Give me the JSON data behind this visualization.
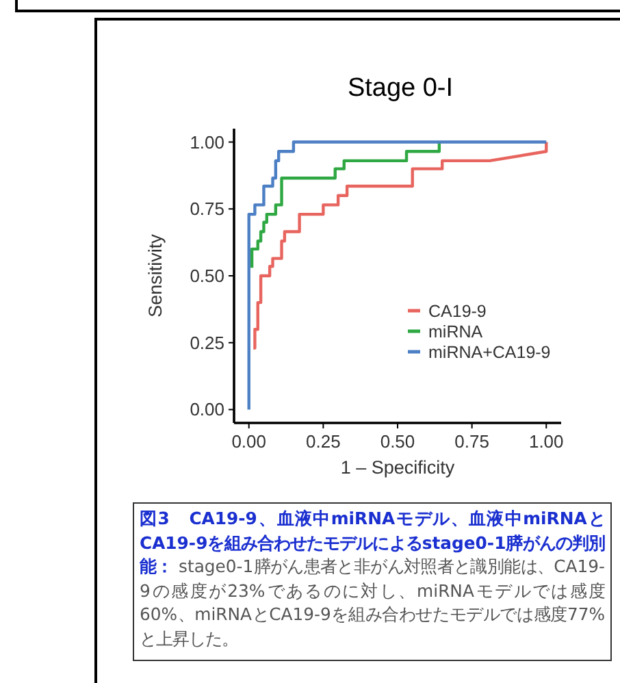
{
  "chart_data": {
    "type": "line",
    "title": "Stage 0-I",
    "xlabel": "1 – Specificity",
    "ylabel": "Sensitivity",
    "xlim": [
      -0.05,
      1.05
    ],
    "ylim": [
      -0.05,
      1.05
    ],
    "xticks": [
      {
        "value": 0,
        "label": "0.00"
      },
      {
        "value": 0.25,
        "label": "0.25"
      },
      {
        "value": 0.5,
        "label": "0.50"
      },
      {
        "value": 0.75,
        "label": "0.75"
      },
      {
        "value": 1,
        "label": "1.00"
      }
    ],
    "yticks": [
      {
        "value": 0,
        "label": "0.00"
      },
      {
        "value": 0.25,
        "label": "0.25"
      },
      {
        "value": 0.5,
        "label": "0.50"
      },
      {
        "value": 0.75,
        "label": "0.75"
      },
      {
        "value": 1,
        "label": "1.00"
      }
    ],
    "grid": false,
    "legend": "bottom right",
    "marker": "none",
    "line_style": "solid",
    "series": [
      {
        "name": "CA19-9",
        "color": "#e8655f",
        "x": [
          0.015,
          0.02,
          0.02,
          0.03,
          0.03,
          0.04,
          0.04,
          0.07,
          0.07,
          0.08,
          0.08,
          0.11,
          0.11,
          0.12,
          0.12,
          0.17,
          0.17,
          0.25,
          0.25,
          0.3,
          0.3,
          0.33,
          0.33,
          0.55,
          0.55,
          0.65,
          0.65,
          0.81,
          1.0,
          1.0
        ],
        "values": [
          0.23,
          0.23,
          0.3,
          0.3,
          0.4,
          0.4,
          0.5,
          0.5,
          0.535,
          0.535,
          0.565,
          0.565,
          0.63,
          0.63,
          0.665,
          0.665,
          0.73,
          0.73,
          0.765,
          0.765,
          0.8,
          0.8,
          0.835,
          0.835,
          0.9,
          0.9,
          0.93,
          0.93,
          0.965,
          1.0
        ]
      },
      {
        "name": "miRNA",
        "color": "#2fa843",
        "x": [
          0.01,
          0.01,
          0.03,
          0.03,
          0.04,
          0.04,
          0.05,
          0.05,
          0.06,
          0.06,
          0.09,
          0.09,
          0.11,
          0.11,
          0.29,
          0.29,
          0.32,
          0.32,
          0.53,
          0.53,
          0.64,
          0.64
        ],
        "values": [
          0.53,
          0.6,
          0.6,
          0.63,
          0.63,
          0.665,
          0.665,
          0.7,
          0.7,
          0.73,
          0.73,
          0.765,
          0.765,
          0.865,
          0.865,
          0.9,
          0.9,
          0.93,
          0.93,
          0.965,
          0.965,
          1.0
        ]
      },
      {
        "name": "miRNA+CA19-9",
        "color": "#4c7fc4",
        "x": [
          0,
          0,
          0.02,
          0.02,
          0.05,
          0.05,
          0.08,
          0.08,
          0.09,
          0.09,
          0.1,
          0.1,
          0.15,
          0.15,
          1.0
        ],
        "values": [
          0,
          0.73,
          0.73,
          0.765,
          0.765,
          0.835,
          0.835,
          0.865,
          0.865,
          0.93,
          0.93,
          0.965,
          0.965,
          1.0,
          1.0
        ]
      }
    ],
    "annotations": [
      "図3　CA19-9、血液中miRNAモデル、血液中miRNAとCA19-9を組み合わせたモデルによるstage0-1膵がんの判別能：",
      "stage0-1膵がん患者と非がん対照者と識別能は、CA19-9の感度が23%であるのに対し、miRNAモデルでは感度60%、miRNAとCA19-9を組み合わせたモデルでは感度77%と上昇した。"
    ]
  }
}
